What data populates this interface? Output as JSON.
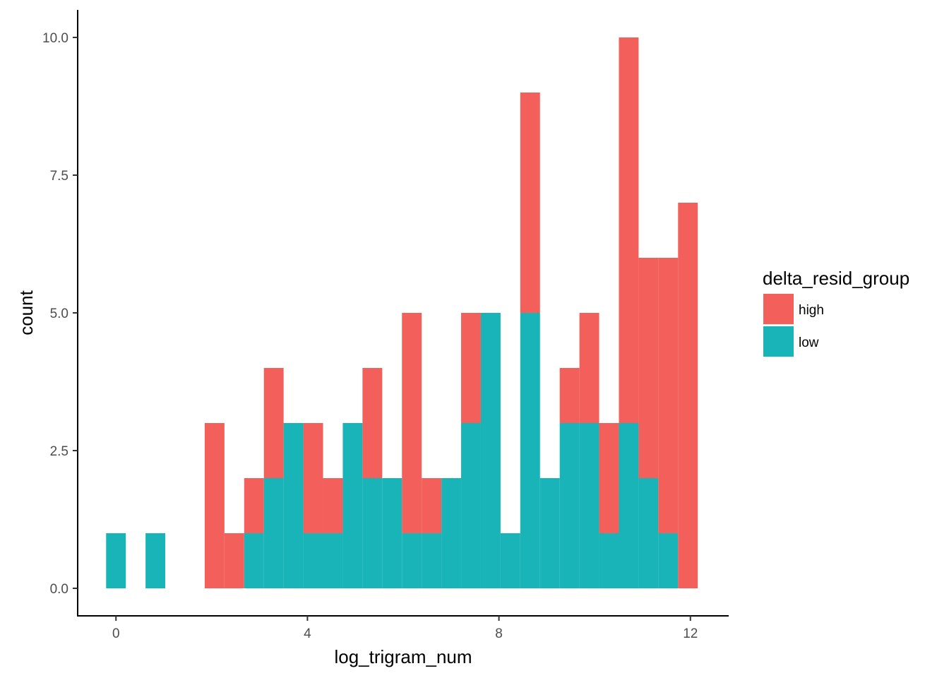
{
  "chart_data": {
    "type": "bar",
    "stacked": true,
    "xlabel": "log_trigram_num",
    "ylabel": "count",
    "xlim": [
      -0.8,
      12.8
    ],
    "ylim": [
      -0.5,
      10.5
    ],
    "xticks": [
      0,
      4,
      8,
      12
    ],
    "xtick_labels": [
      "0",
      "4",
      "8",
      "12"
    ],
    "yticks": [
      0,
      2.5,
      5,
      7.5,
      10
    ],
    "ytick_labels": [
      "0.0",
      "2.5",
      "5.0",
      "7.5",
      "10.0"
    ],
    "bin_width": 0.412,
    "x": [
      0.0,
      0.412,
      0.824,
      1.236,
      1.648,
      2.06,
      2.472,
      2.884,
      3.296,
      3.708,
      4.12,
      4.532,
      4.944,
      5.356,
      5.768,
      6.18,
      6.592,
      7.004,
      7.416,
      7.828,
      8.24,
      8.652,
      9.064,
      9.476,
      9.888,
      10.3,
      10.712,
      11.124,
      11.536,
      11.948
    ],
    "series": [
      {
        "name": "low",
        "color": "#18B4B7",
        "values": [
          1,
          0,
          1,
          0,
          0,
          0,
          0,
          1,
          2,
          3,
          1,
          1,
          3,
          2,
          2,
          1,
          1,
          2,
          3,
          5,
          1,
          5,
          2,
          3,
          3,
          1,
          3,
          2,
          1,
          0
        ]
      },
      {
        "name": "high",
        "color": "#F3605C",
        "values": [
          0,
          0,
          0,
          0,
          0,
          3,
          1,
          1,
          2,
          0,
          2,
          1,
          0,
          2,
          0,
          4,
          1,
          0,
          2,
          0,
          0,
          4,
          0,
          1,
          2,
          2,
          7,
          4,
          5,
          7
        ]
      }
    ],
    "legend": {
      "title": "delta_resid_group",
      "position": "right",
      "items": [
        {
          "label": "high",
          "color": "#F3605C"
        },
        {
          "label": "low",
          "color": "#18B4B7"
        }
      ]
    },
    "grid": false
  }
}
